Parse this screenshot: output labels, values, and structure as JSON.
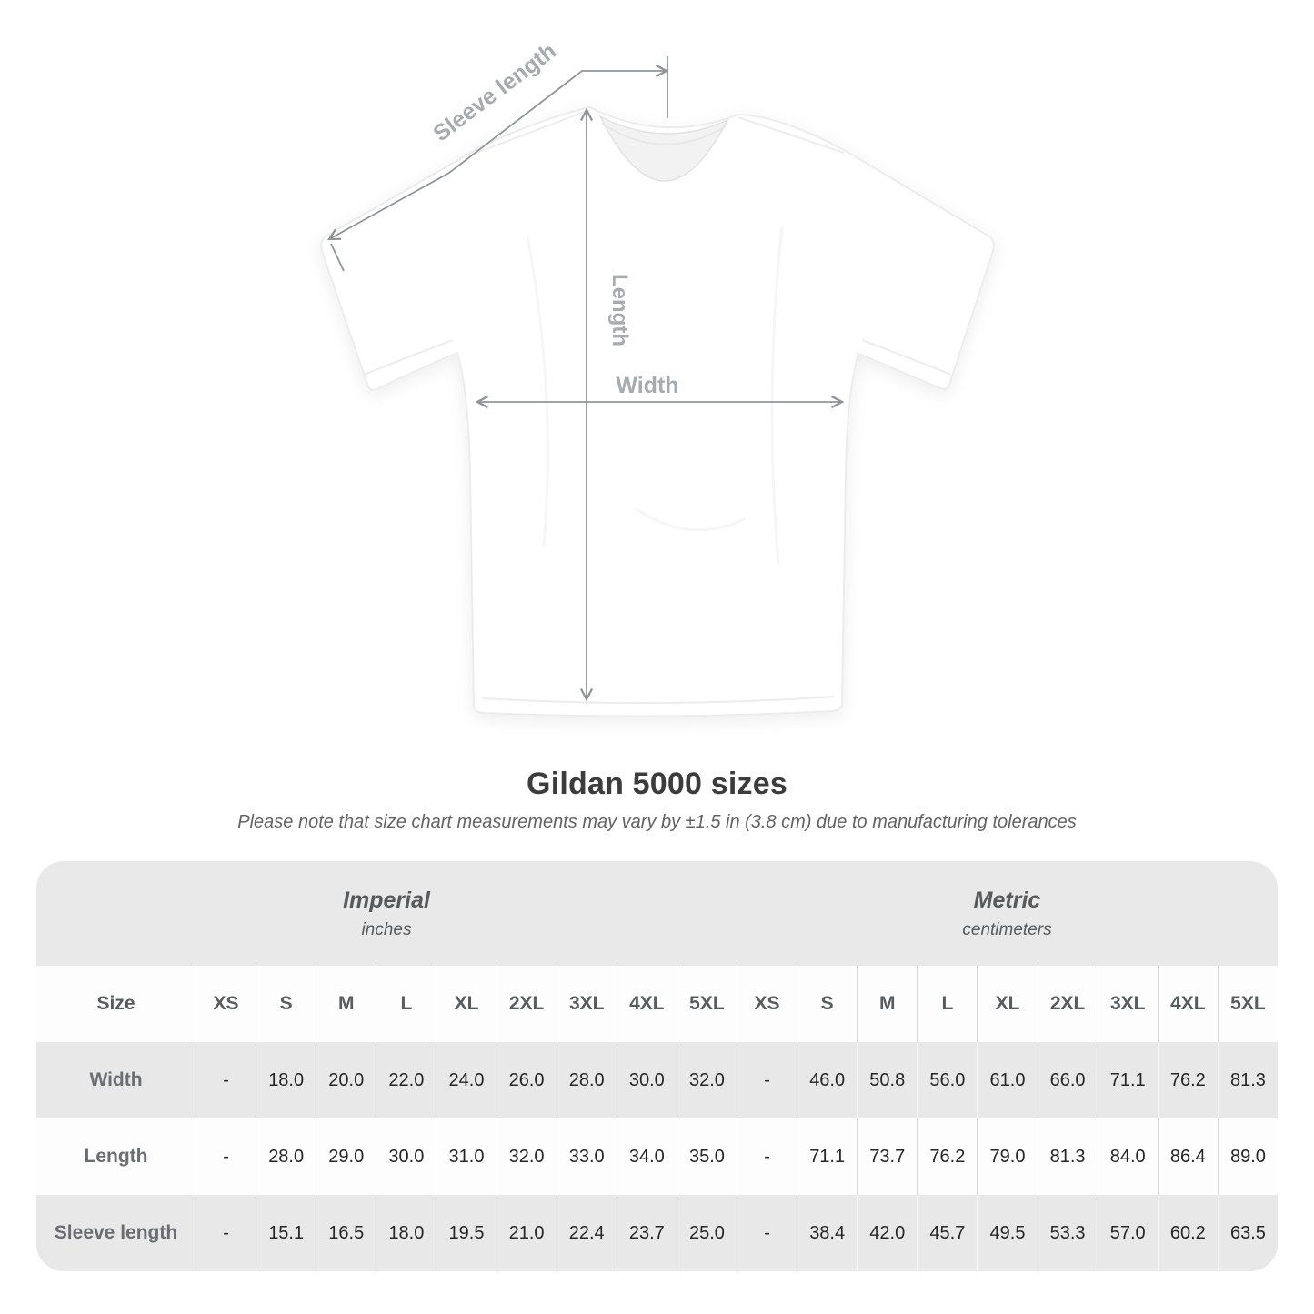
{
  "title": "Gildan 5000 sizes",
  "subtitle": "Please note that size chart measurements may vary by ±1.5 in (3.8 cm) due to manufacturing tolerances",
  "diagram": {
    "labels": {
      "sleeve_length": "Sleeve length",
      "length": "Length",
      "width": "Width"
    }
  },
  "chart_data": {
    "type": "table",
    "title": "Gildan 5000 sizes",
    "note": "Please note that size chart measurements may vary by ±1.5 in (3.8 cm) due to manufacturing tolerances",
    "size_label": "Size",
    "groups": [
      {
        "label": "Imperial",
        "unit": "inches",
        "sizes": [
          "XS",
          "S",
          "M",
          "L",
          "XL",
          "2XL",
          "3XL",
          "4XL",
          "5XL"
        ]
      },
      {
        "label": "Metric",
        "unit": "centimeters",
        "sizes": [
          "XS",
          "S",
          "M",
          "L",
          "XL",
          "2XL",
          "3XL",
          "4XL",
          "5XL"
        ]
      }
    ],
    "rows": [
      {
        "label": "Width",
        "imperial": [
          "-",
          "18.0",
          "20.0",
          "22.0",
          "24.0",
          "26.0",
          "28.0",
          "30.0",
          "32.0"
        ],
        "metric": [
          "-",
          "46.0",
          "50.8",
          "56.0",
          "61.0",
          "66.0",
          "71.1",
          "76.2",
          "81.3"
        ]
      },
      {
        "label": "Length",
        "imperial": [
          "-",
          "28.0",
          "29.0",
          "30.0",
          "31.0",
          "32.0",
          "33.0",
          "34.0",
          "35.0"
        ],
        "metric": [
          "-",
          "71.1",
          "73.7",
          "76.2",
          "79.0",
          "81.3",
          "84.0",
          "86.4",
          "89.0"
        ]
      },
      {
        "label": "Sleeve length",
        "imperial": [
          "-",
          "15.1",
          "16.5",
          "18.0",
          "19.5",
          "21.0",
          "22.4",
          "23.7",
          "25.0"
        ],
        "metric": [
          "-",
          "38.4",
          "42.0",
          "45.7",
          "49.5",
          "53.3",
          "57.0",
          "60.2",
          "63.5"
        ]
      }
    ]
  },
  "colors": {
    "band_bg": "#e9e9e9",
    "row_alt_bg": "#e9e8e8",
    "sep_on_white": "#d9d9d9",
    "sep_on_gray": "#f4f3f3",
    "line": "#8f959a",
    "label": "#a6abb0"
  }
}
